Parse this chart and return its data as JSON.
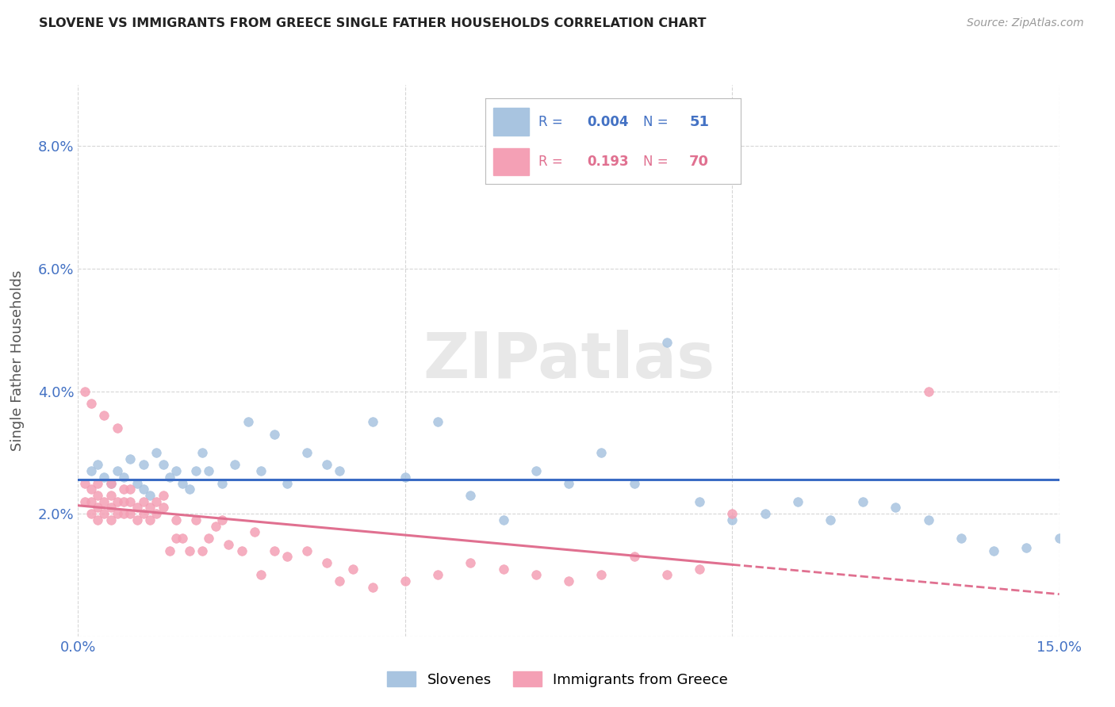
{
  "title": "SLOVENE VS IMMIGRANTS FROM GREECE SINGLE FATHER HOUSEHOLDS CORRELATION CHART",
  "source": "Source: ZipAtlas.com",
  "ylabel": "Single Father Households",
  "xlim": [
    0.0,
    0.15
  ],
  "ylim": [
    0.0,
    0.09
  ],
  "xticks": [
    0.0,
    0.05,
    0.1,
    0.15
  ],
  "xtick_labels": [
    "0.0%",
    "",
    "",
    "15.0%"
  ],
  "yticks": [
    0.0,
    0.02,
    0.04,
    0.06,
    0.08
  ],
  "ytick_labels": [
    "",
    "2.0%",
    "4.0%",
    "6.0%",
    "8.0%"
  ],
  "slovene_R": "0.004",
  "slovene_N": "51",
  "greece_R": "0.193",
  "greece_N": "70",
  "slovene_color": "#a8c4e0",
  "greece_color": "#f4a0b5",
  "slovene_line_color": "#3a6bc4",
  "greece_line_color": "#e07090",
  "slovene_x": [
    0.002,
    0.003,
    0.004,
    0.005,
    0.006,
    0.007,
    0.008,
    0.009,
    0.01,
    0.01,
    0.011,
    0.012,
    0.013,
    0.014,
    0.015,
    0.016,
    0.017,
    0.018,
    0.019,
    0.02,
    0.022,
    0.024,
    0.026,
    0.028,
    0.03,
    0.032,
    0.035,
    0.038,
    0.04,
    0.045,
    0.05,
    0.055,
    0.06,
    0.065,
    0.07,
    0.075,
    0.08,
    0.085,
    0.09,
    0.095,
    0.1,
    0.105,
    0.11,
    0.115,
    0.12,
    0.125,
    0.13,
    0.135,
    0.14,
    0.145,
    0.15
  ],
  "slovene_y": [
    0.027,
    0.028,
    0.026,
    0.025,
    0.027,
    0.026,
    0.029,
    0.025,
    0.028,
    0.024,
    0.023,
    0.03,
    0.028,
    0.026,
    0.027,
    0.025,
    0.024,
    0.027,
    0.03,
    0.027,
    0.025,
    0.028,
    0.035,
    0.027,
    0.033,
    0.025,
    0.03,
    0.028,
    0.027,
    0.035,
    0.026,
    0.035,
    0.023,
    0.019,
    0.027,
    0.025,
    0.03,
    0.025,
    0.048,
    0.022,
    0.019,
    0.02,
    0.022,
    0.019,
    0.022,
    0.021,
    0.019,
    0.016,
    0.014,
    0.0145,
    0.016
  ],
  "greece_x": [
    0.001,
    0.001,
    0.001,
    0.002,
    0.002,
    0.002,
    0.002,
    0.003,
    0.003,
    0.003,
    0.003,
    0.004,
    0.004,
    0.004,
    0.005,
    0.005,
    0.005,
    0.005,
    0.006,
    0.006,
    0.006,
    0.007,
    0.007,
    0.007,
    0.008,
    0.008,
    0.008,
    0.009,
    0.009,
    0.01,
    0.01,
    0.011,
    0.011,
    0.012,
    0.012,
    0.013,
    0.013,
    0.014,
    0.015,
    0.015,
    0.016,
    0.017,
    0.018,
    0.019,
    0.02,
    0.021,
    0.022,
    0.023,
    0.025,
    0.027,
    0.028,
    0.03,
    0.032,
    0.035,
    0.038,
    0.04,
    0.042,
    0.045,
    0.05,
    0.055,
    0.06,
    0.065,
    0.07,
    0.075,
    0.08,
    0.085,
    0.09,
    0.095,
    0.1,
    0.13
  ],
  "greece_y": [
    0.022,
    0.025,
    0.04,
    0.02,
    0.022,
    0.024,
    0.038,
    0.019,
    0.021,
    0.023,
    0.025,
    0.02,
    0.022,
    0.036,
    0.019,
    0.021,
    0.023,
    0.025,
    0.02,
    0.022,
    0.034,
    0.02,
    0.022,
    0.024,
    0.02,
    0.022,
    0.024,
    0.019,
    0.021,
    0.02,
    0.022,
    0.019,
    0.021,
    0.02,
    0.022,
    0.021,
    0.023,
    0.014,
    0.016,
    0.019,
    0.016,
    0.014,
    0.019,
    0.014,
    0.016,
    0.018,
    0.019,
    0.015,
    0.014,
    0.017,
    0.01,
    0.014,
    0.013,
    0.014,
    0.012,
    0.009,
    0.011,
    0.008,
    0.009,
    0.01,
    0.012,
    0.011,
    0.01,
    0.009,
    0.01,
    0.013,
    0.01,
    0.011,
    0.02,
    0.04
  ]
}
